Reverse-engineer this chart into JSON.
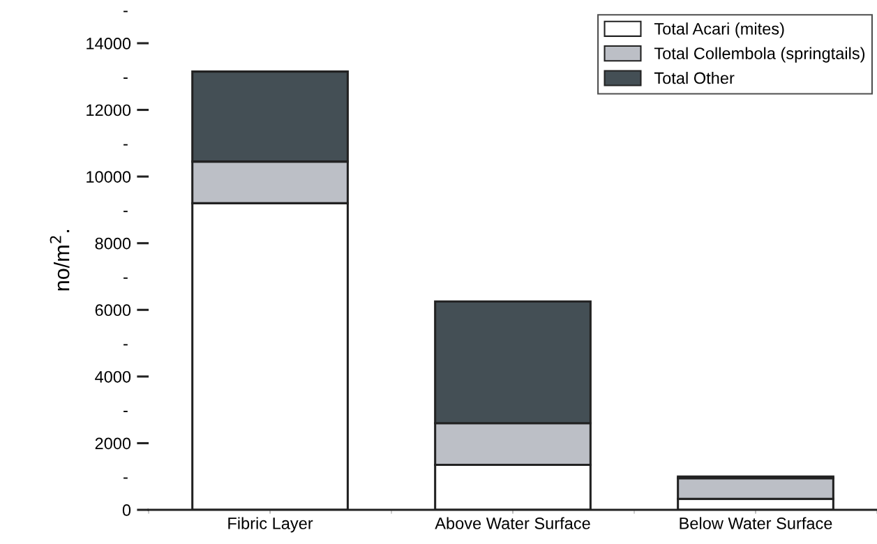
{
  "chart_data": {
    "type": "bar",
    "stacked": true,
    "ylabel": "no/m$^{2}$.",
    "categories": [
      "Fibric Layer",
      "Above Water Surface",
      "Below Water Surface"
    ],
    "series": [
      {
        "name": "Total Acari (mites)",
        "color": "#ffffff",
        "values": [
          9200,
          1350,
          330
        ]
      },
      {
        "name": "Total Collembola (springtails)",
        "color": "#bcbfc6",
        "values": [
          1250,
          1250,
          620
        ]
      },
      {
        "name": "Total Other",
        "color": "#444f55",
        "values": [
          2700,
          3650,
          50
        ]
      }
    ],
    "ylim": [
      0,
      15000
    ],
    "yticks": [
      0,
      {
        "value": 1000,
        "label": "-"
      },
      2000,
      {
        "value": 3000,
        "label": "-"
      },
      4000,
      {
        "value": 5000,
        "label": "-"
      },
      6000,
      {
        "value": 7000,
        "label": "-"
      },
      8000,
      {
        "value": 9000,
        "label": "-"
      },
      10000,
      {
        "value": 11000,
        "label": "-"
      },
      12000,
      {
        "value": 13000,
        "label": "-"
      },
      14000,
      {
        "value": 15000,
        "label": "-"
      }
    ],
    "legend": "top right",
    "grid": false
  }
}
